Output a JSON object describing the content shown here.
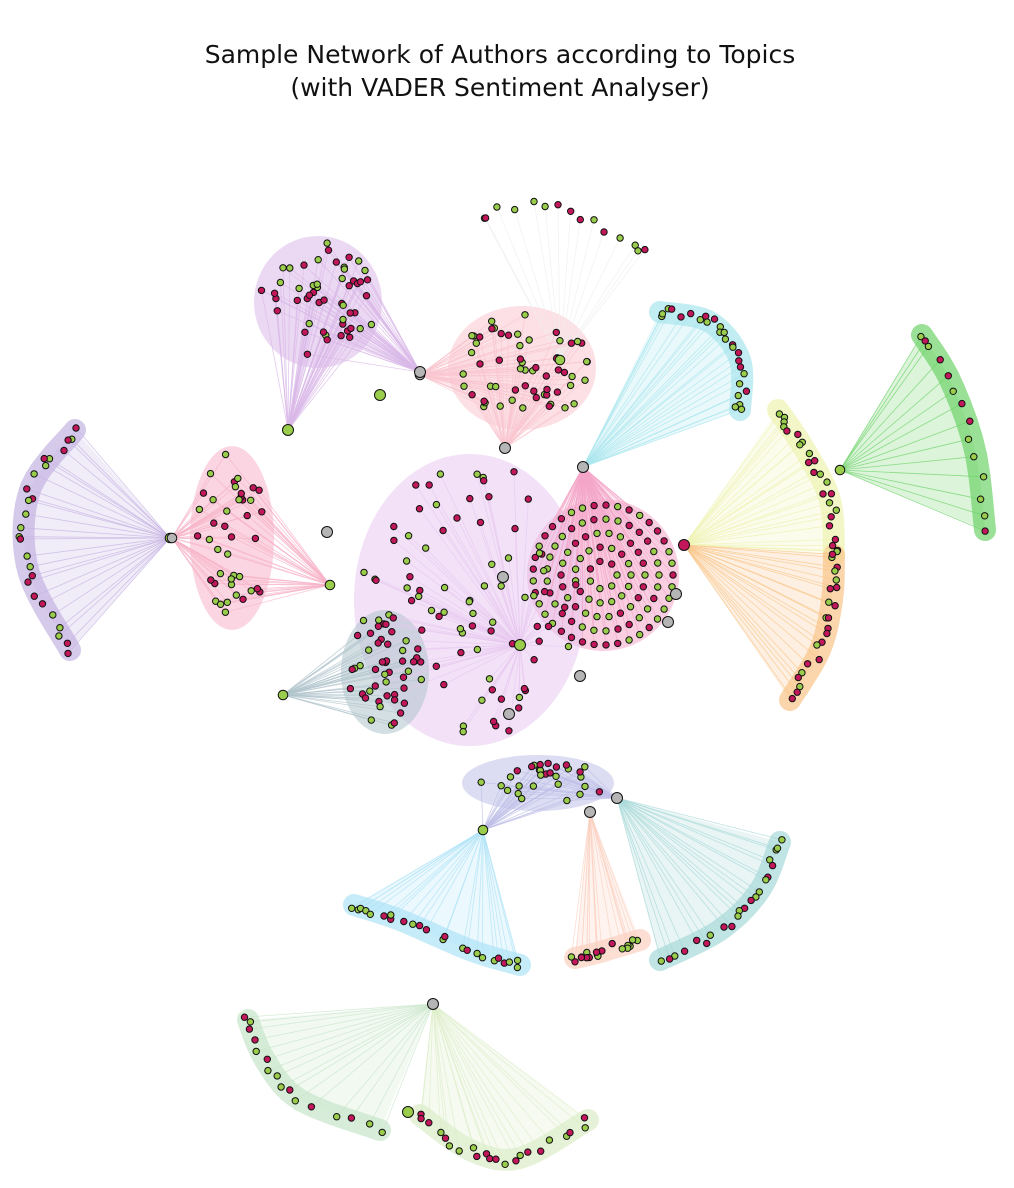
{
  "title": {
    "line1": "Sample Network of Authors according to Topics",
    "line2": "(with VADER Sentiment Analyser)"
  },
  "colors": {
    "positive_node": "#9acd4c",
    "negative_node": "#c2185b",
    "neutral_node": "#b5b5b5",
    "node_edge": "#111111"
  },
  "graph": {
    "type": "network",
    "clusters": [
      {
        "name": "topic-violet-left",
        "color": "#c5b3e3",
        "arrangement": "arc",
        "nodes": 26
      },
      {
        "name": "topic-pink-left",
        "color": "#f7b3c8",
        "arrangement": "ellipse",
        "nodes": 42
      },
      {
        "name": "topic-purple-top-left",
        "color": "#dab8e8",
        "arrangement": "blob",
        "nodes": 52
      },
      {
        "name": "topic-gray-top",
        "color": "#eeeeee",
        "arrangement": "arc",
        "nodes": 15
      },
      {
        "name": "topic-pink-top",
        "color": "#f9c6cf",
        "arrangement": "blob",
        "nodes": 60
      },
      {
        "name": "topic-cyan-top-right",
        "color": "#a8e6ee",
        "arrangement": "blob",
        "nodes": 26
      },
      {
        "name": "topic-green-right",
        "color": "#6fd36a",
        "arrangement": "arc",
        "nodes": 14
      },
      {
        "name": "topic-yellow-right",
        "color": "#eef3b0",
        "arrangement": "arc",
        "nodes": 24
      },
      {
        "name": "topic-orange-right",
        "color": "#f9c58a",
        "arrangement": "arc",
        "nodes": 22
      },
      {
        "name": "topic-magenta-center-right",
        "color": "#f4a6c8",
        "arrangement": "circle",
        "nodes": 110
      },
      {
        "name": "topic-center-mixed",
        "color": "#e8c8f0",
        "arrangement": "blob",
        "nodes": 90
      },
      {
        "name": "topic-slate-left",
        "color": "#b0c4cc",
        "arrangement": "blob",
        "nodes": 38
      },
      {
        "name": "topic-lavender-bottom",
        "color": "#bfbfe8",
        "arrangement": "ellipse",
        "nodes": 30
      },
      {
        "name": "topic-teal-bottom-right",
        "color": "#a7d8d8",
        "arrangement": "arc",
        "nodes": 22
      },
      {
        "name": "topic-peach-bottom-right",
        "color": "#fbd0c0",
        "arrangement": "arc",
        "nodes": 18
      },
      {
        "name": "topic-skyblue-bottom",
        "color": "#aee3f7",
        "arrangement": "arc",
        "nodes": 24
      },
      {
        "name": "topic-sage-bottom",
        "color": "#c8e6c9",
        "arrangement": "arc",
        "nodes": 16
      },
      {
        "name": "topic-lime-bottom",
        "color": "#dcedc8",
        "arrangement": "arc",
        "nodes": 22
      }
    ]
  }
}
